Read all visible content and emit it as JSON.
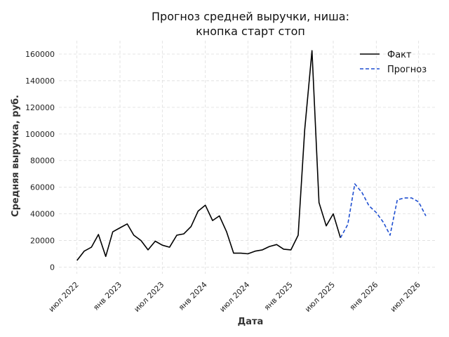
{
  "chart_data": {
    "type": "line",
    "title": [
      "Прогноз средней выручки, ниша:",
      "кнопка старт стоп"
    ],
    "xlabel": "Дата",
    "ylabel": "Средняя выручка, руб.",
    "x_tick_labels": [
      "июл 2022",
      "янв 2023",
      "июл 2023",
      "янв 2024",
      "июл 2024",
      "янв 2025",
      "июл 2025",
      "янв 2026",
      "июл 2026"
    ],
    "x_tick_dates": [
      "2022-07-01",
      "2023-01-01",
      "2023-07-01",
      "2024-01-01",
      "2024-07-01",
      "2025-01-01",
      "2025-07-01",
      "2026-01-01",
      "2026-07-01"
    ],
    "y_ticks": [
      0,
      20000,
      40000,
      60000,
      80000,
      100000,
      120000,
      140000,
      160000
    ],
    "ylim": [
      -5000,
      170000
    ],
    "xlim": [
      "2022-04-15",
      "2026-09-15"
    ],
    "grid": true,
    "legend_position": "top-right",
    "series": [
      {
        "name": "Факт",
        "color": "#000000",
        "style": "solid",
        "x": [
          "2022-07-01",
          "2022-08-01",
          "2022-09-01",
          "2022-10-01",
          "2022-11-01",
          "2022-12-01",
          "2023-01-01",
          "2023-02-01",
          "2023-03-01",
          "2023-04-01",
          "2023-05-01",
          "2023-06-01",
          "2023-07-01",
          "2023-08-01",
          "2023-09-01",
          "2023-10-01",
          "2023-11-01",
          "2023-12-01",
          "2024-01-01",
          "2024-02-01",
          "2024-03-01",
          "2024-04-01",
          "2024-05-01",
          "2024-06-01",
          "2024-07-01",
          "2024-08-01",
          "2024-09-01",
          "2024-10-01",
          "2024-11-01",
          "2024-12-01",
          "2025-01-01",
          "2025-02-01",
          "2025-03-01",
          "2025-04-01",
          "2025-05-01",
          "2025-06-01",
          "2025-07-01",
          "2025-08-01"
        ],
        "values": [
          5000,
          12000,
          15000,
          24500,
          8000,
          26500,
          29500,
          32500,
          24000,
          20000,
          13000,
          19500,
          16500,
          15000,
          24000,
          25000,
          30500,
          42000,
          46500,
          35000,
          38500,
          26500,
          10500,
          10500,
          10000,
          12000,
          13000,
          15500,
          17000,
          13500,
          13000,
          24000,
          103000,
          162500,
          48500,
          31000,
          40000,
          22000
        ]
      },
      {
        "name": "Прогноз",
        "color": "#1f4fd1",
        "style": "dashed",
        "x": [
          "2025-08-01",
          "2025-09-01",
          "2025-10-01",
          "2025-11-01",
          "2025-12-01",
          "2026-01-01",
          "2026-02-01",
          "2026-03-01",
          "2026-04-01",
          "2026-05-01",
          "2026-06-01",
          "2026-07-01",
          "2026-08-01"
        ],
        "values": [
          22000,
          32000,
          62500,
          56000,
          46000,
          41000,
          33500,
          24000,
          50500,
          52000,
          52000,
          49000,
          38500
        ]
      }
    ]
  }
}
